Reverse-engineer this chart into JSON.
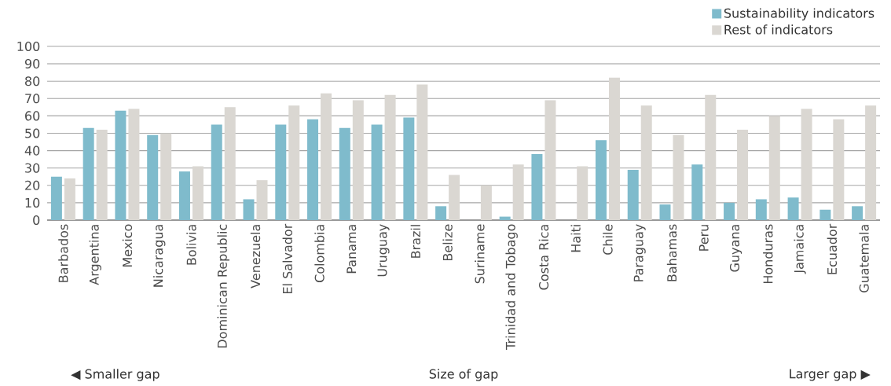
{
  "chart_data": {
    "type": "bar",
    "categories": [
      "Barbados",
      "Argentina",
      "Mexico",
      "Nicaragua",
      "Bolivia",
      "Dominican Republic",
      "Venezuela",
      "El Salvador",
      "Colombia",
      "Panama",
      "Uruguay",
      "Brazil",
      "Belize",
      "Suriname",
      "Trinidad and Tobago",
      "Costa Rica",
      "Haiti",
      "Chile",
      "Paraguay",
      "Bahamas",
      "Peru",
      "Guyana",
      "Honduras",
      "Jamaica",
      "Ecuador",
      "Guatemala"
    ],
    "series": [
      {
        "name": "Sustainability indicators",
        "color": "#7fbbcc",
        "values": [
          25,
          53,
          63,
          49,
          28,
          55,
          12,
          55,
          58,
          53,
          55,
          59,
          8,
          0,
          2,
          38,
          0,
          46,
          29,
          9,
          32,
          10,
          12,
          13,
          6,
          8
        ]
      },
      {
        "name": "Rest of indicators",
        "color": "#dad7d2",
        "values": [
          24,
          52,
          64,
          50,
          31,
          65,
          23,
          66,
          73,
          69,
          72,
          78,
          26,
          20,
          32,
          69,
          31,
          82,
          66,
          49,
          72,
          52,
          60,
          64,
          58,
          66
        ]
      }
    ],
    "ylim": [
      0,
      100
    ],
    "yticks": [
      0,
      10,
      20,
      30,
      40,
      50,
      60,
      70,
      80,
      90,
      100
    ],
    "grid": "y",
    "legend": "top right",
    "xlabel": "Size of gap",
    "annotations": [
      "◀ Smaller gap",
      "Larger gap ▶"
    ]
  }
}
